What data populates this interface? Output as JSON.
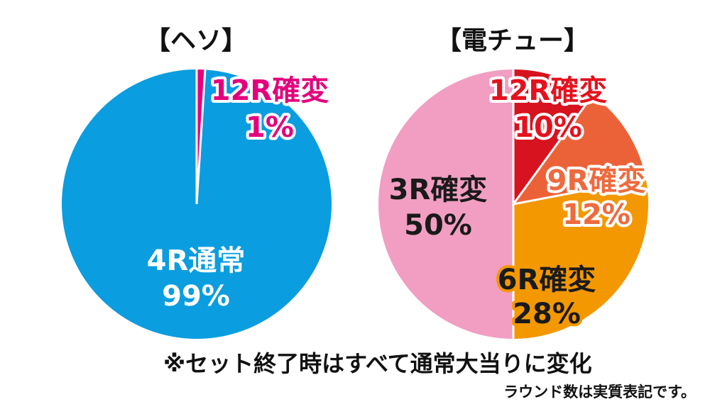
{
  "chart_data": [
    {
      "type": "pie",
      "title": "【ヘソ】",
      "start": "top",
      "direction": "clockwise",
      "slices": [
        {
          "name": "12R確変",
          "value": 1,
          "label": "1%",
          "color": "#e5007f",
          "label_color": "#e3007c",
          "outline": "#ffffff"
        },
        {
          "name": "4R通常",
          "value": 99,
          "label": "99%",
          "color": "#0a9de0",
          "label_color": "#ffffff",
          "outline": null
        }
      ]
    },
    {
      "type": "pie",
      "title": "【電チュー】",
      "start": "top",
      "direction": "clockwise",
      "slices": [
        {
          "name": "12R確変",
          "value": 10,
          "label": "10%",
          "color": "#d6131f",
          "label_color": "#e4121e",
          "outline": "#ffffff"
        },
        {
          "name": "9R確変",
          "value": 12,
          "label": "12%",
          "color": "#ec6238",
          "label_color": "#ee6a3f",
          "outline": "#ffffff"
        },
        {
          "name": "6R確変",
          "value": 28,
          "label": "28%",
          "color": "#f39800",
          "label_color": "#1a1a1a",
          "outline": "#f39800"
        },
        {
          "name": "3R確変",
          "value": 50,
          "label": "50%",
          "color": "#f19ec2",
          "label_color": "#1a1a1a",
          "outline": null
        }
      ]
    }
  ],
  "footnote": "※セット終了時はすべて通常大当りに変化",
  "subnote": "ラウンド数は実質表記です。"
}
